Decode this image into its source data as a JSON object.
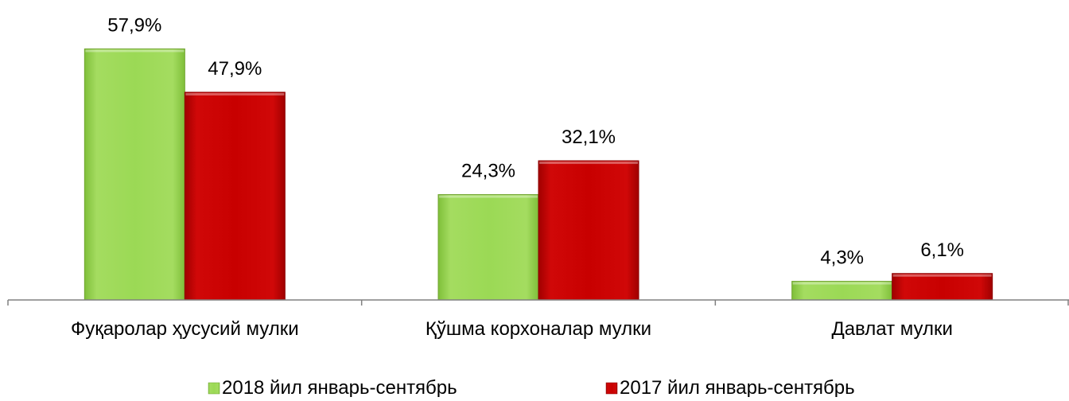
{
  "chart_data": {
    "type": "bar",
    "title": "",
    "xlabel": "",
    "ylabel": "",
    "categories": [
      "Фуқаролар ҳусусий мулки",
      "Қўшма корхоналар мулки",
      "Давлат мулки"
    ],
    "series": [
      {
        "name": "2018 йил январь-сентябрь",
        "values": [
          57.9,
          24.3,
          4.3
        ],
        "labels": [
          "57,9%",
          "24,3%",
          "4,3%"
        ],
        "color": "#92d050"
      },
      {
        "name": "2017 йил январь-сентябрь",
        "values": [
          47.9,
          32.1,
          6.1
        ],
        "labels": [
          "47,9%",
          "32,1%",
          "6,1%"
        ],
        "color": "#c00000"
      }
    ],
    "ylim": [
      0,
      60
    ],
    "grid": false,
    "legend_position": "bottom"
  }
}
